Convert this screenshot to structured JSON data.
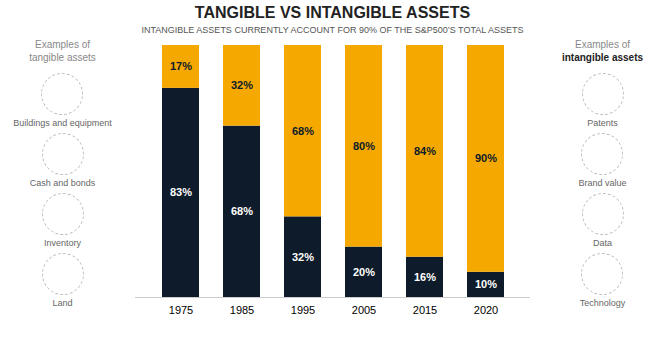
{
  "chart_data": {
    "type": "bar",
    "title": "TANGIBLE VS INTANGIBLE ASSETS",
    "subtitle": "INTANGIBLE ASSETS CURRENTLY ACCOUNT FOR 90% OF THE S&P500’S TOTAL ASSETS",
    "categories": [
      "1975",
      "1985",
      "1995",
      "2005",
      "2015",
      "2020"
    ],
    "series": [
      {
        "color": "#0d1b2a",
        "values": [
          83,
          68,
          32,
          20,
          16,
          10
        ],
        "value_labels": [
          "83%",
          "68%",
          "32%",
          "20%",
          "16%",
          "10%"
        ]
      },
      {
        "color": "#f5a800",
        "values": [
          17,
          32,
          68,
          80,
          84,
          90
        ],
        "value_labels": [
          "17%",
          "32%",
          "68%",
          "80%",
          "84%",
          "90%"
        ]
      }
    ],
    "stacked": true,
    "data_labels": true,
    "ylim": [
      0,
      100
    ],
    "yticks": [],
    "tick_labels": "x",
    "grid": false,
    "annotations": [
      {
        "title": [
          "Examples of",
          "tangible assets"
        ],
        "items": [
          "Buildings and equipment",
          "Cash and bonds",
          "Inventory",
          "Land"
        ]
      },
      {
        "title": [
          "Examples of",
          "intangible assets"
        ],
        "items": [
          "Patents",
          "Brand value",
          "Data",
          "Technology"
        ]
      }
    ]
  }
}
